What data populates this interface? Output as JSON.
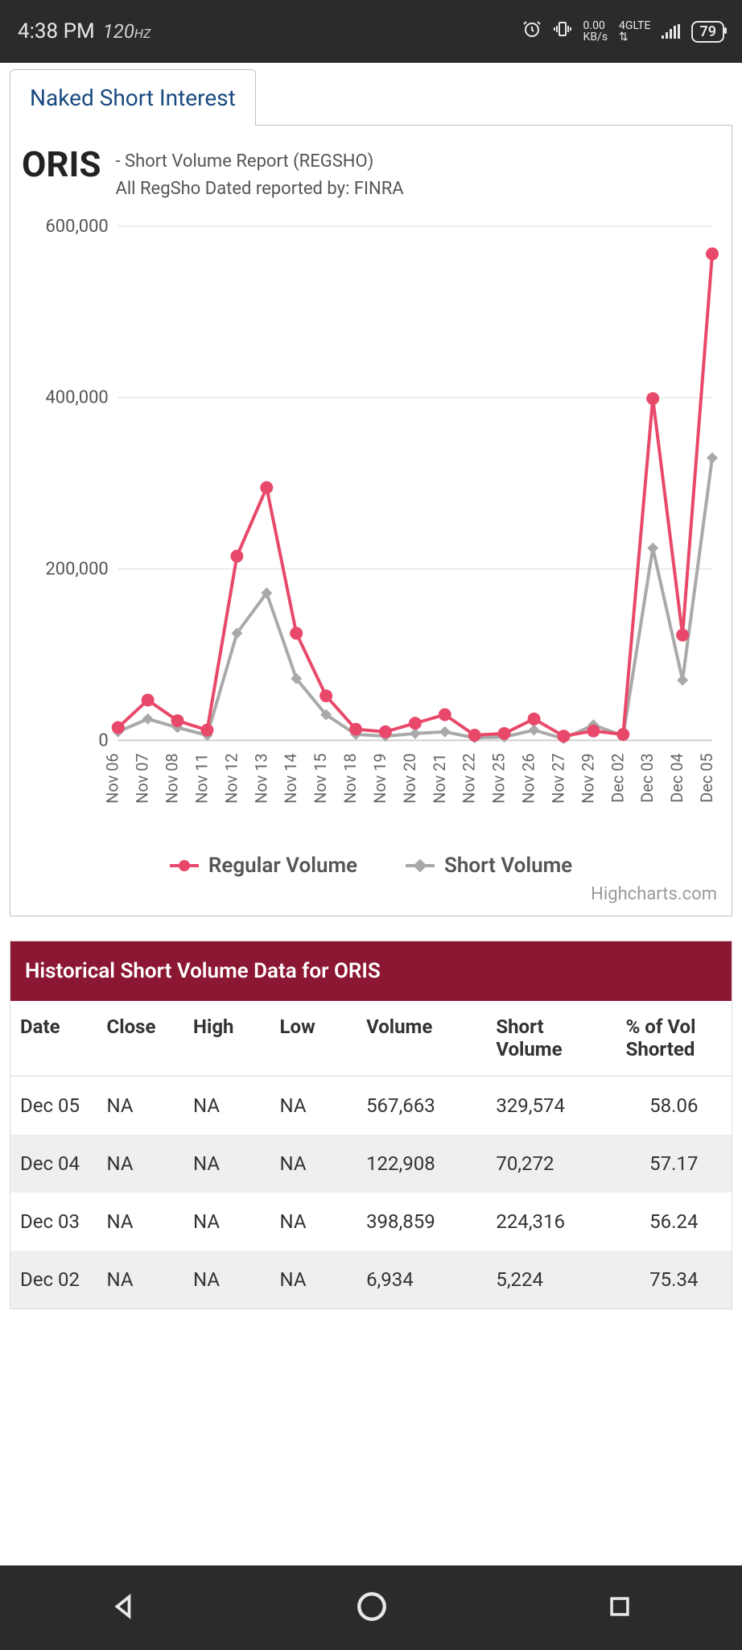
{
  "status_bar": {
    "time": "4:38 PM",
    "refresh_rate": "120",
    "refresh_unit": "HZ",
    "kbs_value": "0.00",
    "kbs_label": "KB/s",
    "net_label": "4GLTE",
    "battery": "79"
  },
  "tab": {
    "label": "Naked Short Interest"
  },
  "header": {
    "ticker": "ORIS",
    "line1": "- Short Volume Report  (REGSHO)",
    "line2": "All RegSho Dated reported by: FINRA"
  },
  "chart": {
    "type": "line",
    "y_axis": {
      "min": 0,
      "max": 600000,
      "step": 200000,
      "labels": [
        "600,000",
        "400,000",
        "200,000",
        "0"
      ]
    },
    "categories": [
      "Nov 06",
      "Nov 07",
      "Nov 08",
      "Nov 11",
      "Nov 12",
      "Nov 13",
      "Nov 14",
      "Nov 15",
      "Nov 18",
      "Nov 19",
      "Nov 20",
      "Nov 21",
      "Nov 22",
      "Nov 25",
      "Nov 26",
      "Nov 27",
      "Nov 29",
      "Dec 02",
      "Dec 03",
      "Dec 04",
      "Dec 05"
    ],
    "series": {
      "regular": {
        "label": "Regular Volume",
        "color": "#e8496a",
        "values": [
          15000,
          47000,
          23000,
          12000,
          215000,
          295000,
          125000,
          52000,
          13000,
          10000,
          20000,
          30000,
          6000,
          8000,
          25000,
          5000,
          11000,
          6934,
          398859,
          122908,
          567663
        ]
      },
      "short": {
        "label": "Short Volume",
        "color": "#a9a9a9",
        "values": [
          10000,
          25000,
          15000,
          6000,
          125000,
          172000,
          72000,
          30000,
          7000,
          5000,
          8000,
          10000,
          3000,
          4000,
          12000,
          2000,
          18000,
          5224,
          224316,
          70272,
          329574
        ]
      }
    },
    "grid_color": "#e6e6e6",
    "background": "#ffffff",
    "credit": "Highcharts.com"
  },
  "table": {
    "title": "Historical Short Volume Data for ORIS",
    "header_bg": "#8c1732",
    "columns": [
      "Date",
      "Close",
      "High",
      "Low",
      "Volume",
      "Short Volume",
      "% of Vol Shorted"
    ],
    "rows": [
      [
        "Dec 05",
        "NA",
        "NA",
        "NA",
        "567,663",
        "329,574",
        "58.06"
      ],
      [
        "Dec 04",
        "NA",
        "NA",
        "NA",
        "122,908",
        "70,272",
        "57.17"
      ],
      [
        "Dec 03",
        "NA",
        "NA",
        "NA",
        "398,859",
        "224,316",
        "56.24"
      ],
      [
        "Dec 02",
        "NA",
        "NA",
        "NA",
        "6,934",
        "5,224",
        "75.34"
      ]
    ]
  }
}
